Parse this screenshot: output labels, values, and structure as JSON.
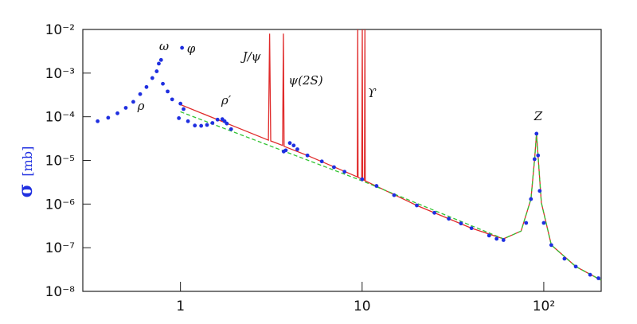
{
  "chart_data": {
    "type": "scatter",
    "ylabel": {
      "symbol": "σ",
      "unit": "[mb]"
    },
    "log_x": true,
    "log_y": true,
    "xlim": [
      0.29,
      207
    ],
    "ylim": [
      1e-08,
      0.01
    ],
    "xticks": [
      1,
      10,
      {
        "value": 100,
        "label": "10²"
      }
    ],
    "yticks": [
      {
        "value": 0.01,
        "label": "10⁻²"
      },
      {
        "value": 0.001,
        "label": "10⁻³"
      },
      {
        "value": 0.0001,
        "label": "10⁻⁴"
      },
      {
        "value": 1e-05,
        "label": "10⁻⁵"
      },
      {
        "value": 1e-06,
        "label": "10⁻⁶"
      },
      {
        "value": 1e-07,
        "label": "10⁻⁷"
      },
      {
        "value": 1e-08,
        "label": "10⁻⁸"
      }
    ],
    "annotations": [
      "ρ",
      "ω",
      "φ",
      "J/ψ",
      "ψ(2S)",
      "ϒ",
      "ρ′",
      "Z"
    ],
    "series": [
      {
        "kind": "points",
        "color": "#1f2fe0",
        "x": [
          0.35,
          0.4,
          0.45,
          0.5,
          0.55,
          0.6,
          0.65,
          0.7,
          0.74,
          0.76,
          0.782,
          0.8,
          0.85,
          0.9,
          0.98,
          1.0,
          1.02,
          1.04,
          1.1,
          1.2,
          1.3,
          1.4,
          1.5,
          1.6,
          1.7,
          1.75,
          1.8,
          1.9,
          3.7,
          3.8,
          4.0,
          4.2,
          4.4,
          5,
          6,
          7,
          8,
          10,
          12,
          15,
          20,
          25,
          30,
          35,
          40,
          50,
          55,
          60,
          80,
          85,
          89,
          91.2,
          93,
          95,
          100,
          110,
          130,
          150,
          180,
          200
        ],
        "values": [
          7.9e-05,
          9.5e-05,
          0.00012,
          0.00016,
          0.00022,
          0.00033,
          0.00048,
          0.00077,
          0.0011,
          0.00165,
          0.002,
          0.00057,
          0.00038,
          0.00025,
          9.3e-05,
          0.0002,
          0.0038,
          0.00015,
          7.9e-05,
          6.3e-05,
          6.2e-05,
          6.5e-05,
          7.2e-05,
          8.6e-05,
          8.8e-05,
          7.9e-05,
          7e-05,
          5.2e-05,
          1.6e-05,
          1.7e-05,
          2.5e-05,
          2.2e-05,
          1.8e-05,
          1.3e-05,
          9.5e-06,
          7e-06,
          5.5e-06,
          3.7e-06,
          2.6e-06,
          1.6e-06,
          9.3e-07,
          6.3e-07,
          4.6e-07,
          3.6e-07,
          2.8e-07,
          1.9e-07,
          1.6e-07,
          1.5e-07,
          3.7e-07,
          1.3e-06,
          1.07e-05,
          4.1e-05,
          1.3e-05,
          2e-06,
          3.7e-07,
          1.15e-07,
          5.6e-08,
          3.7e-08,
          2.4e-08,
          2e-08
        ]
      },
      {
        "kind": "line",
        "color": "#e02a2a",
        "x": [
          1.0,
          2,
          3.05,
          3.097,
          3.14,
          3.65,
          3.686,
          3.72,
          5,
          9.4,
          9.46,
          9.5,
          9.95,
          10.02,
          10.07,
          10.3,
          10.36,
          10.4,
          20,
          40,
          60,
          75,
          85,
          89,
          91.2,
          93,
          97,
          110,
          150,
          207
        ],
        "values": [
          0.00019,
          5.9e-05,
          2.9e-05,
          0.008,
          2.8e-05,
          2.2e-05,
          0.008,
          2.1e-05,
          1.3e-05,
          4.2e-06,
          0.01,
          4.1e-06,
          3.7e-06,
          0.01,
          3.6e-06,
          3.5e-06,
          0.01,
          3.4e-06,
          9.3e-07,
          2.8e-07,
          1.6e-07,
          2.4e-07,
          1.3e-06,
          1.07e-05,
          4.1e-05,
          1.3e-05,
          1.07e-06,
          1.15e-07,
          3.7e-08,
          1.8e-08
        ]
      },
      {
        "kind": "dashed",
        "color": "#33c433",
        "x": [
          1.0,
          10,
          60,
          75,
          85,
          89,
          91.2,
          93,
          97,
          110,
          150,
          207
        ],
        "values": [
          0.00013,
          3.4e-06,
          1.6e-07,
          2.4e-07,
          1.3e-06,
          1.07e-05,
          4.1e-05,
          1.3e-05,
          1.07e-06,
          1.15e-07,
          3.7e-08,
          1.8e-08
        ]
      }
    ]
  }
}
